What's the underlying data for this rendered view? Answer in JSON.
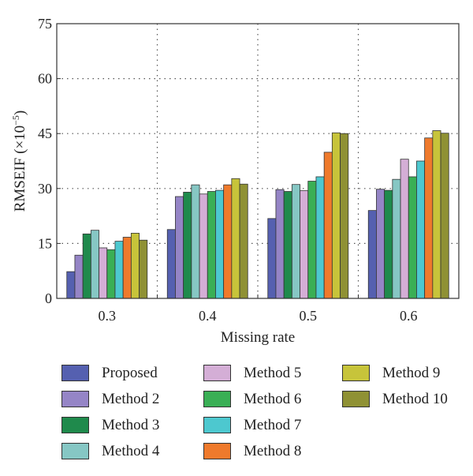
{
  "chart_data": {
    "type": "bar",
    "title": "",
    "xlabel": "Missing rate",
    "ylabel_main": "RMSEIF (×10",
    "ylabel_exp": "−5",
    "ylabel_close": ")",
    "ylim": [
      0,
      75
    ],
    "yticks": [
      "0",
      "15",
      "30",
      "45",
      "60",
      "75"
    ],
    "ytick_values": [
      0,
      15,
      30,
      45,
      60,
      75
    ],
    "categories": [
      "0.3",
      "0.4",
      "0.5",
      "0.6"
    ],
    "grid": "dotted",
    "legend_position": "bottom",
    "series": [
      {
        "name": "Proposed",
        "color": "#5560b0",
        "values": [
          7.3,
          18.8,
          21.8,
          24.0
        ]
      },
      {
        "name": "Method 2",
        "color": "#9585c6",
        "values": [
          11.8,
          27.8,
          29.7,
          29.8
        ]
      },
      {
        "name": "Method 3",
        "color": "#1f8a4c",
        "values": [
          17.6,
          29.0,
          29.2,
          29.5
        ]
      },
      {
        "name": "Method 4",
        "color": "#86c7c4",
        "values": [
          18.6,
          31.0,
          31.1,
          32.5
        ]
      },
      {
        "name": "Method 5",
        "color": "#d4aed6",
        "values": [
          13.8,
          28.5,
          29.4,
          38.0
        ]
      },
      {
        "name": "Method 6",
        "color": "#3aaf55",
        "values": [
          13.3,
          29.2,
          32.0,
          33.2
        ]
      },
      {
        "name": "Method 7",
        "color": "#4dc8cf",
        "values": [
          15.6,
          29.5,
          33.2,
          37.5
        ]
      },
      {
        "name": "Method 8",
        "color": "#ef7a2c",
        "values": [
          16.7,
          31.0,
          39.9,
          43.8
        ]
      },
      {
        "name": "Method 9",
        "color": "#c7c43a",
        "values": [
          17.8,
          32.7,
          45.2,
          45.8
        ]
      },
      {
        "name": "Method 10",
        "color": "#8f9134",
        "values": [
          15.9,
          31.2,
          45.0,
          45.1
        ]
      }
    ]
  }
}
